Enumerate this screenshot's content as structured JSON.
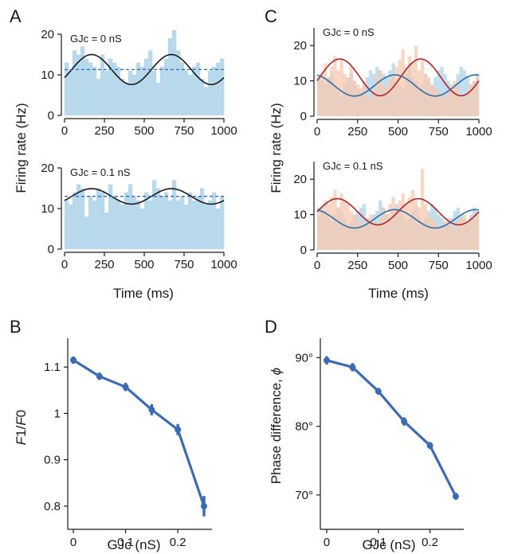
{
  "colors": {
    "hist_blue": "#b8d8ec",
    "hist_orange": "#f7c9b1",
    "sine_black": "#1a1a1a",
    "sine_red": "#b3242a",
    "sine_blue": "#2f6da6",
    "dashed_blue": "#2f6da6",
    "line_blue": "#3a6bb3",
    "axis": "#1a1a1a"
  },
  "panels": {
    "A": {
      "letter": "A",
      "ylabel": "Firing rate (Hz)",
      "xlabel": "Time (ms)"
    },
    "B": {
      "letter": "B",
      "xlabel": "GJc (nS)"
    },
    "C": {
      "letter": "C",
      "ylabel": "Firing rate (Hz)",
      "xlabel": "Time (ms)"
    },
    "D": {
      "letter": "D",
      "ylabel": "Phase difference, ",
      "ylabel_symbol": "ϕ",
      "xlabel": "GJc (nS)"
    }
  },
  "chart_data": [
    {
      "id": "A-top",
      "panel": "A",
      "type": "bar",
      "annotation": "GJc =  0 nS",
      "xlim": [
        0,
        1000
      ],
      "ylim": [
        0,
        20
      ],
      "xticks": [
        "0",
        "250",
        "500",
        "750",
        "1000"
      ],
      "yticks": [
        "0",
        "10",
        "20"
      ],
      "bin_width": 25,
      "hist": [
        13,
        11,
        16,
        15,
        17,
        14,
        13,
        12,
        9,
        15,
        11,
        14,
        13,
        12,
        9,
        8,
        11,
        10,
        13,
        12,
        14,
        16,
        11,
        8,
        12,
        14,
        19,
        21,
        16,
        13,
        11,
        10,
        12,
        13,
        9,
        7,
        11,
        12,
        13,
        14
      ],
      "sine": {
        "mean": 11.3,
        "amplitude": 3.7,
        "period": 500,
        "peak_at": 170
      },
      "dashed_level": 11.3
    },
    {
      "id": "A-bottom",
      "panel": "A",
      "type": "bar",
      "annotation": "GJc =  0.1 nS",
      "xlim": [
        0,
        1000
      ],
      "ylim": [
        0,
        20
      ],
      "xticks": [
        "0",
        "250",
        "500",
        "750",
        "1000"
      ],
      "yticks": [
        "0",
        "10",
        "20"
      ],
      "bin_width": 25,
      "hist": [
        12,
        11,
        14,
        16,
        15,
        8,
        13,
        12,
        15,
        14,
        9,
        16,
        13,
        12,
        11,
        14,
        16,
        13,
        12,
        10,
        14,
        12,
        17,
        15,
        13,
        14,
        12,
        17,
        12,
        13,
        11,
        14,
        12,
        13,
        15,
        11,
        12,
        14,
        10,
        13
      ],
      "sine": {
        "mean": 13,
        "amplitude": 1.9,
        "period": 500,
        "peak_at": 170
      },
      "dashed_level": 13
    },
    {
      "id": "C-top",
      "panel": "C",
      "type": "bar",
      "annotation": "GJc =  0 nS",
      "xlim": [
        0,
        1000
      ],
      "ylim": [
        0,
        25
      ],
      "xticks": [
        "0",
        "250",
        "500",
        "750",
        "1000"
      ],
      "yticks": [
        "0",
        "10",
        "20"
      ],
      "bin_width": 20,
      "hist_blue": [
        11,
        10,
        9,
        11,
        12,
        8,
        7,
        6,
        9,
        11,
        12,
        10,
        8,
        7,
        9,
        11,
        13,
        12,
        14,
        13,
        12,
        11,
        13,
        15,
        10,
        9,
        8,
        12,
        14,
        11,
        10,
        8,
        9,
        12,
        10,
        9,
        11,
        13,
        14,
        12,
        10,
        8,
        9,
        12,
        14,
        13,
        11,
        9,
        10,
        12
      ],
      "hist_orange": [
        10,
        12,
        15,
        11,
        14,
        17,
        13,
        16,
        12,
        11,
        14,
        10,
        9,
        8,
        10,
        6,
        5,
        7,
        11,
        13,
        9,
        8,
        10,
        12,
        14,
        16,
        19,
        14,
        17,
        15,
        20,
        13,
        16,
        12,
        11,
        9,
        8,
        7,
        6,
        5,
        7,
        9,
        10,
        8,
        6,
        5,
        7,
        9,
        10,
        11
      ],
      "sine_red": {
        "mean": 11,
        "amplitude": 5.2,
        "period": 500,
        "peak_at": 140
      },
      "sine_blue": {
        "mean": 8.7,
        "amplitude": 3.0,
        "period": 500,
        "peak_at": 480
      }
    },
    {
      "id": "C-bottom",
      "panel": "C",
      "type": "bar",
      "annotation": "GJc =  0.1 nS",
      "xlim": [
        0,
        1000
      ],
      "ylim": [
        0,
        25
      ],
      "xticks": [
        "0",
        "250",
        "500",
        "750",
        "1000"
      ],
      "yticks": [
        "0",
        "10",
        "20"
      ],
      "bin_width": 20,
      "hist_blue": [
        10,
        12,
        11,
        9,
        8,
        10,
        12,
        11,
        9,
        7,
        8,
        10,
        11,
        12,
        13,
        9,
        8,
        10,
        11,
        14,
        12,
        10,
        9,
        11,
        13,
        12,
        10,
        8,
        9,
        11,
        12,
        10,
        8,
        9,
        11,
        13,
        12,
        10,
        9,
        8,
        7,
        9,
        11,
        12,
        10,
        9,
        8,
        10,
        12,
        11
      ],
      "hist_orange": [
        12,
        11,
        14,
        13,
        15,
        17,
        12,
        16,
        14,
        13,
        11,
        10,
        9,
        8,
        7,
        9,
        10,
        8,
        7,
        9,
        12,
        10,
        13,
        15,
        12,
        14,
        16,
        13,
        15,
        17,
        14,
        12,
        23,
        13,
        10,
        9,
        8,
        7,
        6,
        8,
        9,
        7,
        6,
        8,
        9,
        10,
        8,
        9,
        10,
        11
      ],
      "sine_red": {
        "mean": 10.8,
        "amplitude": 3.7,
        "period": 500,
        "peak_at": 125
      },
      "sine_blue": {
        "mean": 8.8,
        "amplitude": 2.6,
        "period": 500,
        "peak_at": 480
      }
    },
    {
      "id": "B",
      "panel": "B",
      "type": "line",
      "xlim": [
        0,
        0.25
      ],
      "ylim": [
        0.75,
        1.15
      ],
      "xticks": [
        0,
        0.1,
        0.2
      ],
      "xtick_labels": [
        "0",
        "0.1",
        "0.2"
      ],
      "yticks": [
        0.8,
        0.9,
        1.0,
        1.1
      ],
      "ytick_labels": [
        "0.8",
        "0.9",
        "1",
        "1.1"
      ],
      "x": [
        0,
        0.05,
        0.1,
        0.15,
        0.2,
        0.25
      ],
      "y": [
        1.115,
        1.08,
        1.057,
        1.008,
        0.965,
        0.8
      ],
      "err": [
        0.008,
        0.008,
        0.009,
        0.012,
        0.012,
        0.022
      ]
    },
    {
      "id": "D",
      "panel": "D",
      "type": "line",
      "xlim": [
        0,
        0.25
      ],
      "ylim": [
        65,
        92
      ],
      "xticks": [
        0,
        0.1,
        0.2
      ],
      "xtick_labels": [
        "0",
        "0.1",
        "0.2"
      ],
      "yticks": [
        70,
        80,
        90
      ],
      "ytick_labels": [
        "70°",
        "80°",
        "90°"
      ],
      "x": [
        0,
        0.05,
        0.1,
        0.15,
        0.2,
        0.25
      ],
      "y": [
        89.6,
        88.6,
        85.1,
        80.7,
        77.2,
        69.8
      ],
      "err": [
        0.6,
        0.6,
        0.5,
        0.6,
        0.5,
        0.5
      ]
    }
  ]
}
